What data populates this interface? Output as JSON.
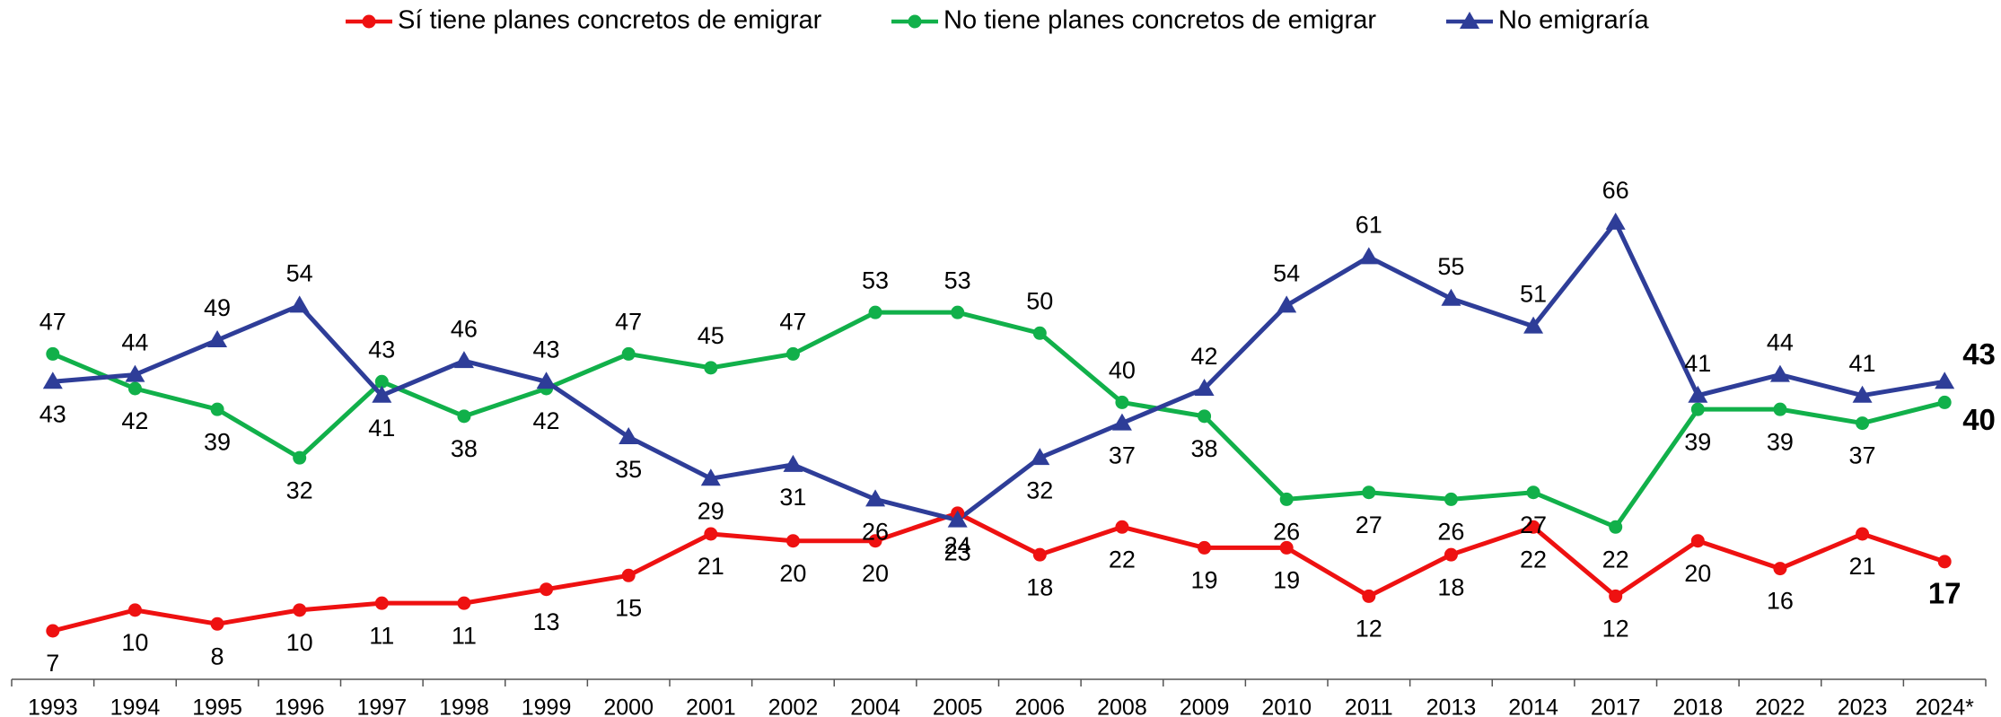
{
  "chart_data": {
    "type": "line",
    "categories": [
      "1993",
      "1994",
      "1995",
      "1996",
      "1997",
      "1998",
      "1999",
      "2000",
      "2001",
      "2002",
      "2004",
      "2005",
      "2006",
      "2008",
      "2009",
      "2010",
      "2011",
      "2013",
      "2014",
      "2017",
      "2018",
      "2022",
      "2023",
      "2024*"
    ],
    "series": [
      {
        "name": "Sí tiene planes concretos de emigrar",
        "color": "#ee1111",
        "marker": "circle",
        "values": [
          7,
          10,
          8,
          10,
          11,
          11,
          13,
          15,
          21,
          20,
          20,
          24,
          18,
          22,
          19,
          19,
          12,
          18,
          22,
          12,
          20,
          16,
          21,
          17
        ]
      },
      {
        "name": "No tiene planes concretos de emigrar",
        "color": "#11b04a",
        "marker": "circle",
        "values": [
          47,
          42,
          39,
          32,
          43,
          38,
          42,
          47,
          45,
          47,
          53,
          53,
          50,
          40,
          38,
          26,
          27,
          26,
          27,
          22,
          39,
          39,
          37,
          40
        ]
      },
      {
        "name": "No emigraría",
        "color": "#2e3d98",
        "marker": "triangle",
        "values": [
          43,
          44,
          49,
          54,
          41,
          46,
          43,
          35,
          29,
          31,
          26,
          23,
          32,
          37,
          42,
          54,
          61,
          55,
          51,
          66,
          41,
          44,
          41,
          43
        ]
      }
    ],
    "ylim": [
      0,
      70
    ],
    "legend": "top"
  }
}
